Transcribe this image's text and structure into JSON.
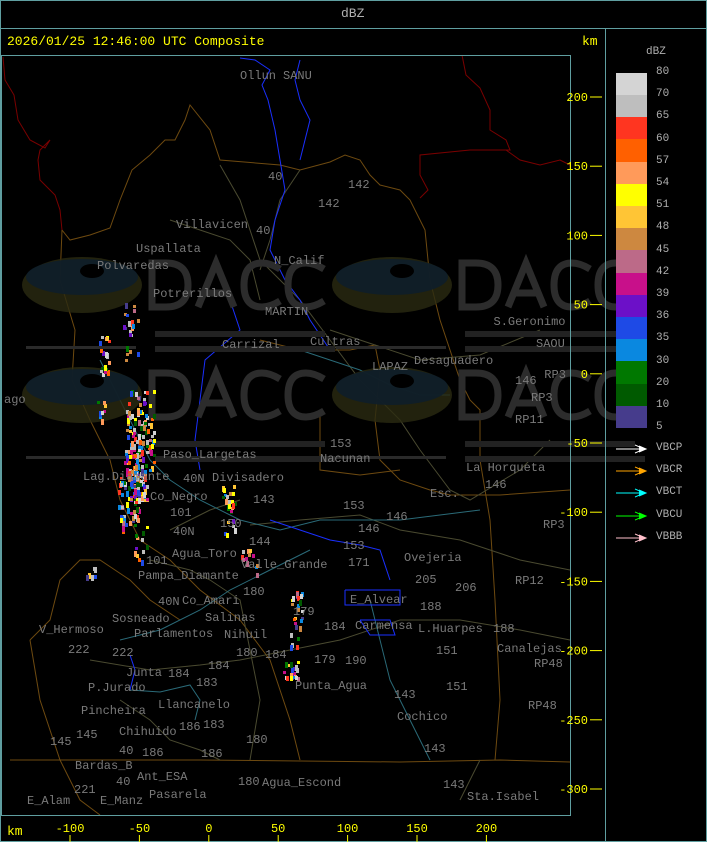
{
  "header": {
    "title": "dBZ"
  },
  "map_panel": {
    "title": "2026/01/25 12:46:00 UTC Composite",
    "unit_label": "km",
    "y_axis": {
      "unit": "km",
      "ticks": [
        "200",
        "150",
        "100",
        "50",
        "0",
        "-50",
        "-100",
        "-150",
        "-200",
        "-250",
        "-300"
      ]
    },
    "x_axis": {
      "unit": "km",
      "ticks": [
        "-100",
        "-50",
        "0",
        "50",
        "100",
        "150",
        "200"
      ]
    },
    "place_labels": [
      "Ollun",
      "SANU",
      "Villavicen",
      "Uspallata",
      "Polvaredas",
      "N_Calif",
      "Potrerillos",
      "MARTIN",
      "Carrizal",
      "Cultras",
      "40",
      "40",
      "142",
      "142",
      "S.Geronimo",
      "SAOU",
      "Desaguadero",
      "LAPAZ",
      "RP3",
      "146",
      "RP3",
      "RP11",
      "153",
      "Nacunan",
      "La Horqueta",
      "146",
      "Esc.",
      "153",
      "146",
      "RP3",
      "146",
      "153",
      "Ovejeria",
      "205",
      "206",
      "RP12",
      "188",
      "L.Huarpes",
      "151",
      "188",
      "Canalejas",
      "RP48",
      "151",
      "RP48",
      "143",
      "Cochico",
      "143",
      "143",
      "Sta.Isabel",
      "Punta_Agua",
      "179",
      "190",
      "184",
      "Carmensa",
      "179",
      "ago",
      "Lag.Diamante",
      "Co_Negro",
      "Paso_Largetas",
      "Divisadero",
      "143",
      "40N",
      "101",
      "40N",
      "Agua_Toro",
      "150",
      "Pampa_Diamante",
      "101",
      "40N",
      "Co_Amari",
      "Salinas",
      "180",
      "Parlamentos",
      "Sosneado",
      "Nihuil",
      "V_Hermoso",
      "222",
      "222",
      "Junta",
      "180",
      "184",
      "184",
      "P.Jurado",
      "Pincheira",
      "184",
      "183",
      "Llancanelo",
      "Chihuido",
      "186",
      "186",
      "40",
      "Ant_ESA",
      "183",
      "145",
      "145",
      "Bardas_B",
      "180",
      "186",
      "40",
      "E_Manz",
      "180",
      "Agua_Escond",
      "221",
      "E_Alam",
      "Pasarela",
      "Valle_Grande",
      "144",
      "E_Alvear",
      "171"
    ],
    "watermark": {
      "logo_text": "DACC",
      "line1": "Dirección de Agricultura",
      "line2": "y Contingencias Climáticas",
      "url": "http://www.contingencias.mendoza.gov.ar"
    }
  },
  "legend": {
    "title": "dBZ",
    "levels": [
      "80",
      "70",
      "65",
      "60",
      "57",
      "54",
      "51",
      "48",
      "45",
      "42",
      "39",
      "36",
      "35",
      "30",
      "20",
      "10",
      "5"
    ],
    "colors": [
      "#d4d4d4",
      "#bebebe",
      "#ff3520",
      "#ff6000",
      "#ff9a5a",
      "#ffff00",
      "#ffc535",
      "#cd8840",
      "#bc6a88",
      "#c8108a",
      "#6c10c8",
      "#1e4ae6",
      "#0a88e0",
      "#007800",
      "#005a00",
      "#463c8c"
    ],
    "radars": [
      {
        "name": "VBCP",
        "color": "#ffffff"
      },
      {
        "name": "VBCR",
        "color": "#ffa500"
      },
      {
        "name": "VBCT",
        "color": "#00ffff"
      },
      {
        "name": "VBCU",
        "color": "#00ff00"
      },
      {
        "name": "VBBB",
        "color": "#ffc0cb"
      }
    ]
  }
}
